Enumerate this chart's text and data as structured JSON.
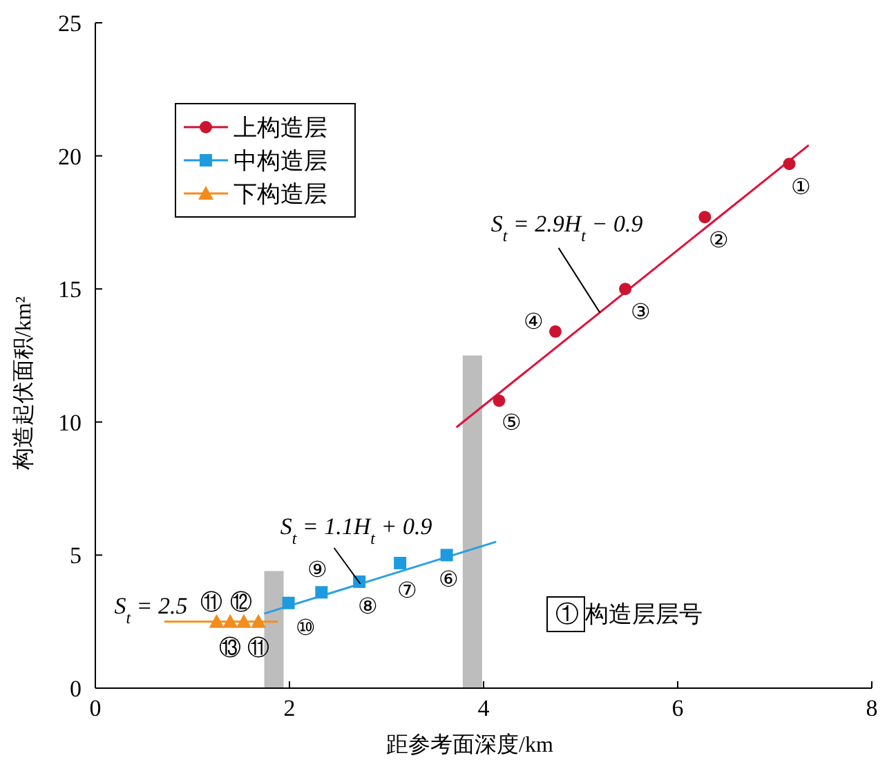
{
  "chart_data": {
    "type": "scatter",
    "xlabel": "距参考面深度/km",
    "ylabel": "构造起伏面积/km²",
    "xlim": [
      0,
      8
    ],
    "xticks": [
      0,
      2,
      4,
      6,
      8
    ],
    "ylim": [
      0,
      25
    ],
    "yticks": [
      0,
      5,
      10,
      15,
      20,
      25
    ],
    "grid": false,
    "legend": "top left",
    "series": [
      {
        "type": "bar",
        "color": "#bdbdbd",
        "x": [
          1.84,
          3.885
        ],
        "values": [
          4.4,
          12.5
        ]
      },
      {
        "type": "line",
        "color": "#e0103a",
        "x": [
          3.72,
          7.35
        ],
        "values": [
          9.8,
          20.4
        ]
      },
      {
        "type": "line",
        "color": "#2a9fe0",
        "x": [
          1.74,
          4.13
        ],
        "values": [
          2.8,
          5.5
        ]
      },
      {
        "type": "line",
        "color": "#f2901c",
        "x": [
          0.71,
          1.88
        ],
        "values": [
          2.5,
          2.5
        ]
      },
      {
        "name": "上构造层",
        "marker": "circle",
        "color": "#cc1430",
        "x": [
          7.15,
          6.28,
          5.46,
          4.74,
          4.16
        ],
        "values": [
          19.7,
          17.7,
          15.0,
          13.4,
          10.8
        ]
      },
      {
        "name": "中构造层",
        "marker": "square",
        "color": "#1e9be0",
        "x": [
          3.62,
          3.14,
          2.72,
          2.33,
          1.99
        ],
        "values": [
          5.0,
          4.7,
          4.0,
          3.6,
          3.2
        ]
      },
      {
        "name": "下构造层",
        "marker": "triangle",
        "color": "#f28c1c",
        "x": [
          1.25,
          1.39,
          1.53,
          1.68
        ],
        "values": [
          2.5,
          2.5,
          2.5,
          2.5
        ]
      }
    ],
    "annotations": [
      {
        "text": "①",
        "x": 7.15,
        "y": 19.7
      },
      {
        "text": "②",
        "x": 6.28,
        "y": 17.7
      },
      {
        "text": "③",
        "x": 5.46,
        "y": 15.0
      },
      {
        "text": "④",
        "x": 4.74,
        "y": 13.4
      },
      {
        "text": "⑤",
        "x": 4.16,
        "y": 10.8
      },
      {
        "text": "⑥",
        "x": 3.62,
        "y": 5.0
      },
      {
        "text": "⑦",
        "x": 3.14,
        "y": 4.7
      },
      {
        "text": "⑧",
        "x": 2.72,
        "y": 4.0
      },
      {
        "text": "⑨",
        "x": 2.33,
        "y": 3.6
      },
      {
        "text": "⑩",
        "x": 1.99,
        "y": 3.2
      },
      {
        "text": "⑪",
        "x": 1.25,
        "y": 2.5
      },
      {
        "text": "⑫",
        "x": 1.53,
        "y": 2.5
      },
      {
        "text": "⑬",
        "x": 1.39,
        "y": 2.5
      },
      {
        "text": "⑪",
        "x": 1.68,
        "y": 2.5
      },
      {
        "text": "S$_{t}$ = 2.9H$_{t}$ − 0.9",
        "x": 5.2,
        "y": 14.1
      },
      {
        "text": "S$_{t}$ = 1.1H$_{t}$ + 0.9",
        "x": 2.73,
        "y": 3.92
      },
      {
        "text": "S$_{t}$ = 2.5",
        "x": 1.0,
        "y": 2.5
      },
      "① 构造层层号"
    ]
  }
}
